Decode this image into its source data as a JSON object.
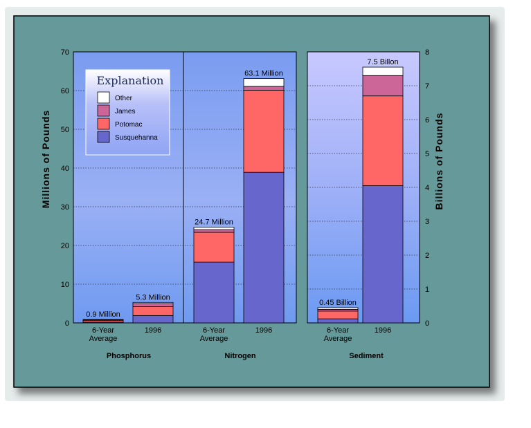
{
  "chart_data": {
    "type": "bar",
    "stacked": true,
    "series_order": [
      "Susquehanna",
      "Potomac",
      "James",
      "Other"
    ],
    "colors": {
      "Susquehanna": "#6666cc",
      "Potomac": "#ff6666",
      "James": "#cc6699",
      "Other": "#ffffff",
      "frame": "#669999"
    },
    "legend": {
      "title": "Explanation",
      "position": "top-left",
      "items": [
        "Other",
        "James",
        "Potomac",
        "Susquehanna"
      ]
    },
    "left_axis": {
      "title": "Millions of Pounds",
      "range": [
        0,
        70
      ],
      "ticks": [
        "0",
        "10",
        "20",
        "30",
        "40",
        "50",
        "60",
        "70"
      ]
    },
    "right_axis": {
      "title": "Billions of Pounds",
      "range": [
        0,
        8
      ],
      "ticks": [
        "0",
        "1",
        "2",
        "3",
        "4",
        "5",
        "6",
        "7",
        "8"
      ]
    },
    "grid": true,
    "groups": [
      {
        "name": "Phosphorus",
        "axis": "left",
        "bars": [
          {
            "label": [
              "6-Year",
              "Average"
            ],
            "total_label": "0.9 Million",
            "values": {
              "Susquehanna": 0.2,
              "Potomac": 0.4,
              "James": 0.2,
              "Other": 0.1
            }
          },
          {
            "label": [
              "1996"
            ],
            "total_label": "5.3 Million",
            "values": {
              "Susquehanna": 1.9,
              "Potomac": 2.3,
              "James": 0.8,
              "Other": 0.3
            }
          }
        ]
      },
      {
        "name": "Nitrogen",
        "axis": "left",
        "bars": [
          {
            "label": [
              "6-Year",
              "Average"
            ],
            "total_label": "24.7 Million",
            "values": {
              "Susquehanna": 15.7,
              "Potomac": 7.7,
              "James": 0.7,
              "Other": 0.6
            }
          },
          {
            "label": [
              "1996"
            ],
            "total_label": "63.1 Million",
            "values": {
              "Susquehanna": 38.9,
              "Potomac": 21.2,
              "James": 1.0,
              "Other": 2.0
            }
          }
        ]
      },
      {
        "name": "Sediment",
        "axis": "right",
        "bars": [
          {
            "label": [
              "6-Year",
              "Average"
            ],
            "total_label": "0.45 Billion",
            "values": {
              "Susquehanna": 0.12,
              "Potomac": 0.23,
              "James": 0.05,
              "Other": 0.05
            }
          },
          {
            "label": [
              "1996"
            ],
            "total_label": "7.5 Billon",
            "values": {
              "Susquehanna": 4.05,
              "Potomac": 2.65,
              "James": 0.6,
              "Other": 0.25
            }
          }
        ]
      }
    ]
  }
}
